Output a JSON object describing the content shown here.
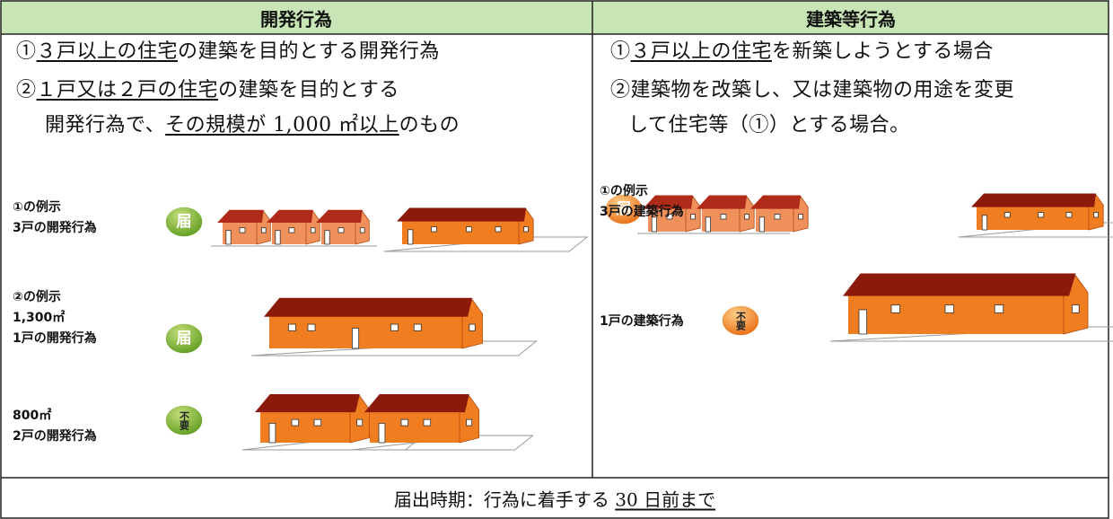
{
  "header": {
    "left": "開発行為",
    "right": "建築等行為"
  },
  "left": {
    "lines": [
      [
        {
          "text": "①"
        },
        {
          "text": "３戸以上の住宅",
          "underline": true
        },
        {
          "text": "の建築を目的とする開発行為"
        }
      ],
      [
        {
          "text": "②"
        },
        {
          "text": "１戸又は２戸の住宅",
          "underline": true
        },
        {
          "text": "の建築を目的とする"
        }
      ],
      [
        {
          "text": "開発行為で、"
        },
        {
          "text": "その規模が 1,000 ㎡以上",
          "underline": true
        },
        {
          "text": "のもの"
        }
      ]
    ],
    "examples": [
      {
        "labels": [
          "①の例示",
          "3戸の開発行為"
        ],
        "badge": "届"
      },
      {
        "labels": [
          "②の例示",
          "1,300㎡",
          "1戸の開発行為"
        ],
        "badge": "届"
      },
      {
        "labels": [
          "800㎡",
          "2戸の開発行為"
        ],
        "badge": "不要"
      }
    ]
  },
  "right": {
    "lines": [
      [
        {
          "text": "①"
        },
        {
          "text": "３戸以上の住宅",
          "underline": true
        },
        {
          "text": "を新築しようとする場合"
        }
      ],
      [
        {
          "text": "②建築物を改築し、又は建築物の用途を変更"
        }
      ],
      [
        {
          "text": "して住宅等（①）とする場合。"
        }
      ]
    ],
    "examples": [
      {
        "labels": [
          "①の例示",
          "3戸の建築行為"
        ],
        "badge": "届"
      },
      {
        "labels": [
          "1戸の建築行為"
        ],
        "badge": "不要"
      }
    ]
  },
  "footer": [
    {
      "text": "届出時期：行為に着手する "
    },
    {
      "text": "30 日前まで",
      "underline": true
    }
  ]
}
